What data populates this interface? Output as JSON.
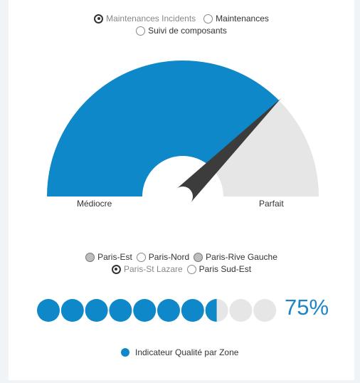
{
  "top_radios": [
    {
      "label": "Maintenances Incidents",
      "selected": true,
      "filled": false
    },
    {
      "label": "Maintenances",
      "selected": false,
      "filled": false
    },
    {
      "label": "Suivi de composants",
      "selected": false,
      "filled": false
    }
  ],
  "gauge": {
    "min_label": "Médiocre",
    "max_label": "Parfait",
    "value_fraction": 0.75,
    "fill_color": "#0e88c8",
    "track_color": "#e6e6e6",
    "needle_color": "#3c3c3c"
  },
  "zone_radios": [
    {
      "label": "Paris-Est",
      "selected": false,
      "filled": true
    },
    {
      "label": "Paris-Nord",
      "selected": false,
      "filled": false
    },
    {
      "label": "Paris-Rive Gauche",
      "selected": false,
      "filled": true
    },
    {
      "label": "Paris-St Lazare",
      "selected": true,
      "filled": false
    },
    {
      "label": "Paris Sud-Est",
      "selected": false,
      "filled": false
    }
  ],
  "indicator": {
    "percent": 0.75,
    "percent_text": "75%",
    "total_dots": 10,
    "active_color": "#0e88c8",
    "inactive_color": "#e6e6e6"
  },
  "legend": {
    "label": "Indicateur Qualité par Zone",
    "color": "#0e88c8"
  }
}
